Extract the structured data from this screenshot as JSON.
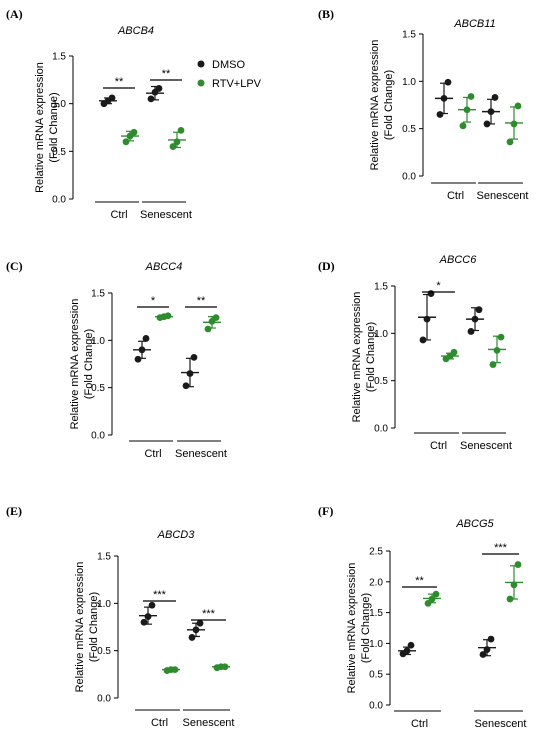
{
  "colors": {
    "dmso": "#1a1a1a",
    "rtv": "#2e8b2e"
  },
  "legend": [
    {
      "label": "DMSO",
      "color": "#1a1a1a"
    },
    {
      "label": "RTV+LPV",
      "color": "#2e8b2e"
    }
  ],
  "groups": [
    "Ctrl",
    "Senescent"
  ],
  "chart_data": [
    {
      "type": "scatter",
      "panel": "(A)",
      "title": "ABCB4",
      "ylabel": [
        "Relative mRNA expression",
        "(Fold Change)"
      ],
      "ylim": [
        0,
        1.5
      ],
      "yticks": [
        "0.0",
        "0.5",
        "1.0",
        "1.5"
      ],
      "categories": [
        "Ctrl",
        "Senescent"
      ],
      "series": [
        {
          "name": "DMSO",
          "points": [
            [
              1.0,
              1.03,
              1.06
            ],
            [
              1.05,
              1.12,
              1.16
            ]
          ],
          "mean": [
            1.03,
            1.11
          ],
          "sd": [
            0.03,
            0.07
          ]
        },
        {
          "name": "RTV+LPV",
          "points": [
            [
              0.6,
              0.66,
              0.7
            ],
            [
              0.55,
              0.6,
              0.72
            ]
          ],
          "mean": [
            0.66,
            0.62
          ],
          "sd": [
            0.05,
            0.08
          ]
        }
      ],
      "significance": [
        "**",
        "**"
      ]
    },
    {
      "type": "scatter",
      "panel": "(B)",
      "title": "ABCB11",
      "ylabel": [
        "Relative mRNA expression",
        "(Fold Change)"
      ],
      "ylim": [
        0,
        1.5
      ],
      "yticks": [
        "0.0",
        "0.5",
        "1.0",
        "1.5"
      ],
      "categories": [
        "Ctrl",
        "Senescent"
      ],
      "series": [
        {
          "name": "DMSO",
          "points": [
            [
              0.65,
              0.82,
              0.99
            ],
            [
              0.55,
              0.68,
              0.83
            ]
          ],
          "mean": [
            0.82,
            0.68
          ],
          "sd": [
            0.16,
            0.13
          ]
        },
        {
          "name": "RTV+LPV",
          "points": [
            [
              0.53,
              0.7,
              0.84
            ],
            [
              0.36,
              0.55,
              0.74
            ]
          ],
          "mean": [
            0.7,
            0.56
          ],
          "sd": [
            0.13,
            0.17
          ]
        }
      ],
      "significance": [
        "",
        ""
      ]
    },
    {
      "type": "scatter",
      "panel": "(C)",
      "title": "ABCC4",
      "ylabel": [
        "Relative mRNA expression",
        "(Fold Change)"
      ],
      "ylim": [
        0,
        1.5
      ],
      "yticks": [
        "0.0",
        "0.5",
        "1.0",
        "1.5"
      ],
      "categories": [
        "Ctrl",
        "Senescent"
      ],
      "series": [
        {
          "name": "DMSO",
          "points": [
            [
              0.8,
              0.9,
              1.02
            ],
            [
              0.52,
              0.65,
              0.82
            ]
          ],
          "mean": [
            0.9,
            0.66
          ],
          "sd": [
            0.09,
            0.15
          ]
        },
        {
          "name": "RTV+LPV",
          "points": [
            [
              1.24,
              1.25,
              1.26
            ],
            [
              1.12,
              1.2,
              1.24
            ]
          ],
          "mean": [
            1.25,
            1.19
          ],
          "sd": [
            0.01,
            0.06
          ]
        }
      ],
      "significance": [
        "*",
        "**"
      ]
    },
    {
      "type": "scatter",
      "panel": "(D)",
      "title": "ABCC6",
      "ylabel": [
        "Relative mRNA expression",
        "(Fold Change)"
      ],
      "ylim": [
        0,
        1.5
      ],
      "yticks": [
        "0.0",
        "0.5",
        "1.0",
        "1.5"
      ],
      "categories": [
        "Ctrl",
        "Senescent"
      ],
      "series": [
        {
          "name": "DMSO",
          "points": [
            [
              0.93,
              1.15,
              1.42
            ],
            [
              1.02,
              1.15,
              1.25
            ]
          ],
          "mean": [
            1.17,
            1.15
          ],
          "sd": [
            0.24,
            0.12
          ]
        },
        {
          "name": "RTV+LPV",
          "points": [
            [
              0.73,
              0.76,
              0.8
            ],
            [
              0.67,
              0.82,
              0.96
            ]
          ],
          "mean": [
            0.76,
            0.83
          ],
          "sd": [
            0.03,
            0.14
          ]
        }
      ],
      "significance": [
        "*",
        ""
      ]
    },
    {
      "type": "scatter",
      "panel": "(E)",
      "title": "ABCD3",
      "ylabel": [
        "Relative mRNA expression",
        "(Fold Change)"
      ],
      "ylim": [
        0,
        1.5
      ],
      "yticks": [
        "0.0",
        "0.5",
        "1.0",
        "1.5"
      ],
      "categories": [
        "Ctrl",
        "Senescent"
      ],
      "series": [
        {
          "name": "DMSO",
          "points": [
            [
              0.8,
              0.86,
              0.98
            ],
            [
              0.64,
              0.72,
              0.79
            ]
          ],
          "mean": [
            0.87,
            0.72
          ],
          "sd": [
            0.09,
            0.07
          ]
        },
        {
          "name": "RTV+LPV",
          "points": [
            [
              0.29,
              0.3,
              0.3
            ],
            [
              0.32,
              0.33,
              0.33
            ]
          ],
          "mean": [
            0.3,
            0.33
          ],
          "sd": [
            0.01,
            0.01
          ]
        }
      ],
      "significance": [
        "***",
        "***"
      ]
    },
    {
      "type": "scatter",
      "panel": "(F)",
      "title": "ABCG5",
      "ylabel": [
        "Relative mRNA expression",
        "(Fold Change)"
      ],
      "ylim": [
        0,
        2.5
      ],
      "yticks": [
        "0.0",
        "0.5",
        "1.0",
        "1.5",
        "2.0",
        "2.5"
      ],
      "categories": [
        "Ctrl",
        "Senescent"
      ],
      "series": [
        {
          "name": "DMSO",
          "points": [
            [
              0.83,
              0.88,
              0.97
            ],
            [
              0.82,
              0.9,
              1.07
            ]
          ],
          "mean": [
            0.88,
            0.93
          ],
          "sd": [
            0.06,
            0.13
          ]
        },
        {
          "name": "RTV+LPV",
          "points": [
            [
              1.65,
              1.72,
              1.8
            ],
            [
              1.72,
              1.95,
              2.28
            ]
          ],
          "mean": [
            1.73,
            1.99
          ],
          "sd": [
            0.07,
            0.27
          ]
        }
      ],
      "significance": [
        "**",
        "***"
      ]
    }
  ]
}
